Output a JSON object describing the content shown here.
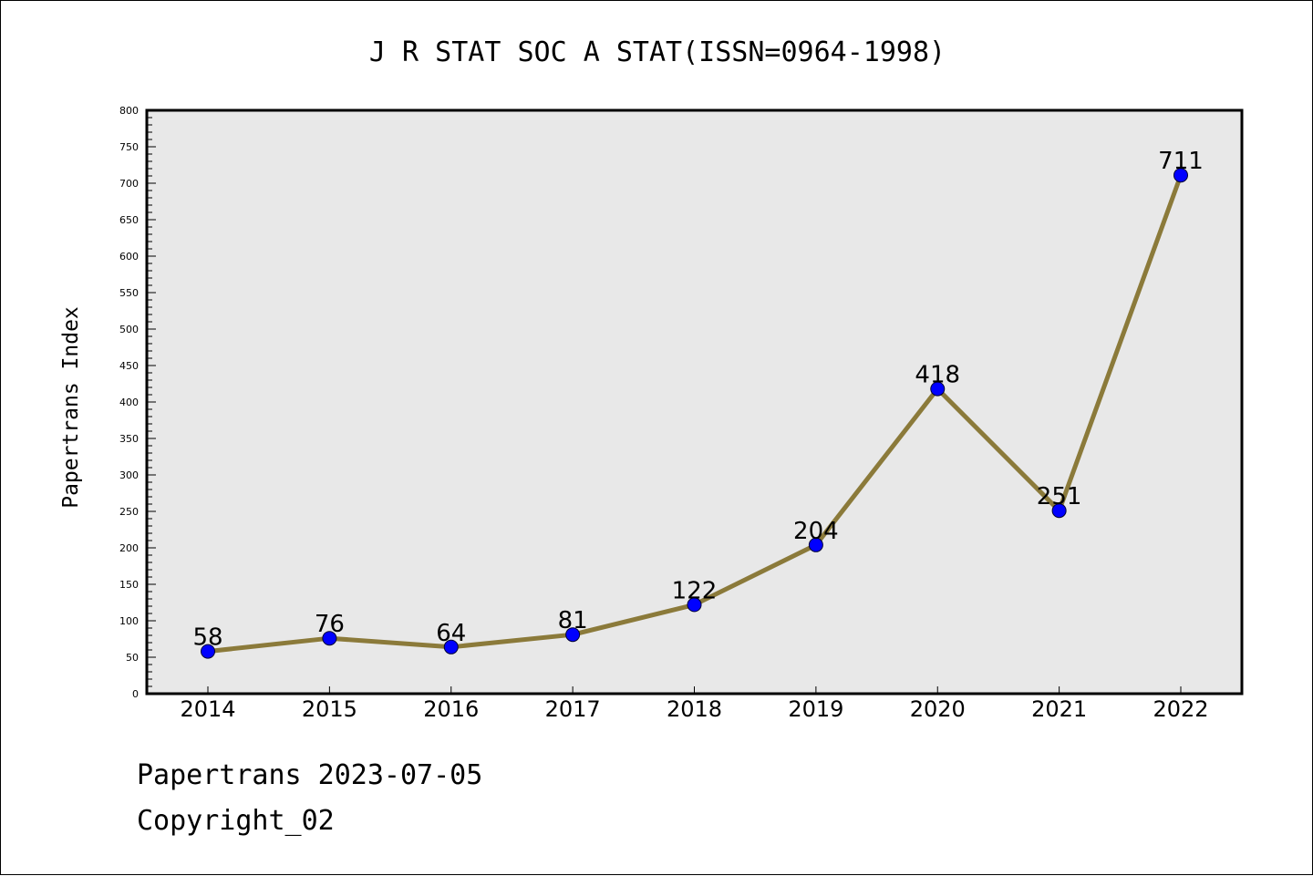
{
  "chart_data": {
    "type": "line",
    "title": "J R STAT SOC A STAT(ISSN=0964-1998)",
    "xlabel": "",
    "ylabel": "Papertrans Index",
    "categories": [
      "2014",
      "2015",
      "2016",
      "2017",
      "2018",
      "2019",
      "2020",
      "2021",
      "2022"
    ],
    "values": [
      58,
      76,
      64,
      81,
      122,
      204,
      418,
      251,
      711
    ],
    "ylim": [
      0,
      800
    ],
    "yticks": [
      0,
      50,
      100,
      150,
      200,
      250,
      300,
      350,
      400,
      450,
      500,
      550,
      600,
      650,
      700,
      750,
      800
    ],
    "grid": false,
    "legend": "none",
    "line_color": "#8b7a3a",
    "marker_color": "#0000ff",
    "plot_background": "#e8e8e8"
  },
  "footer": {
    "line1": "Papertrans 2023-07-05",
    "line2": "Copyright_02"
  }
}
